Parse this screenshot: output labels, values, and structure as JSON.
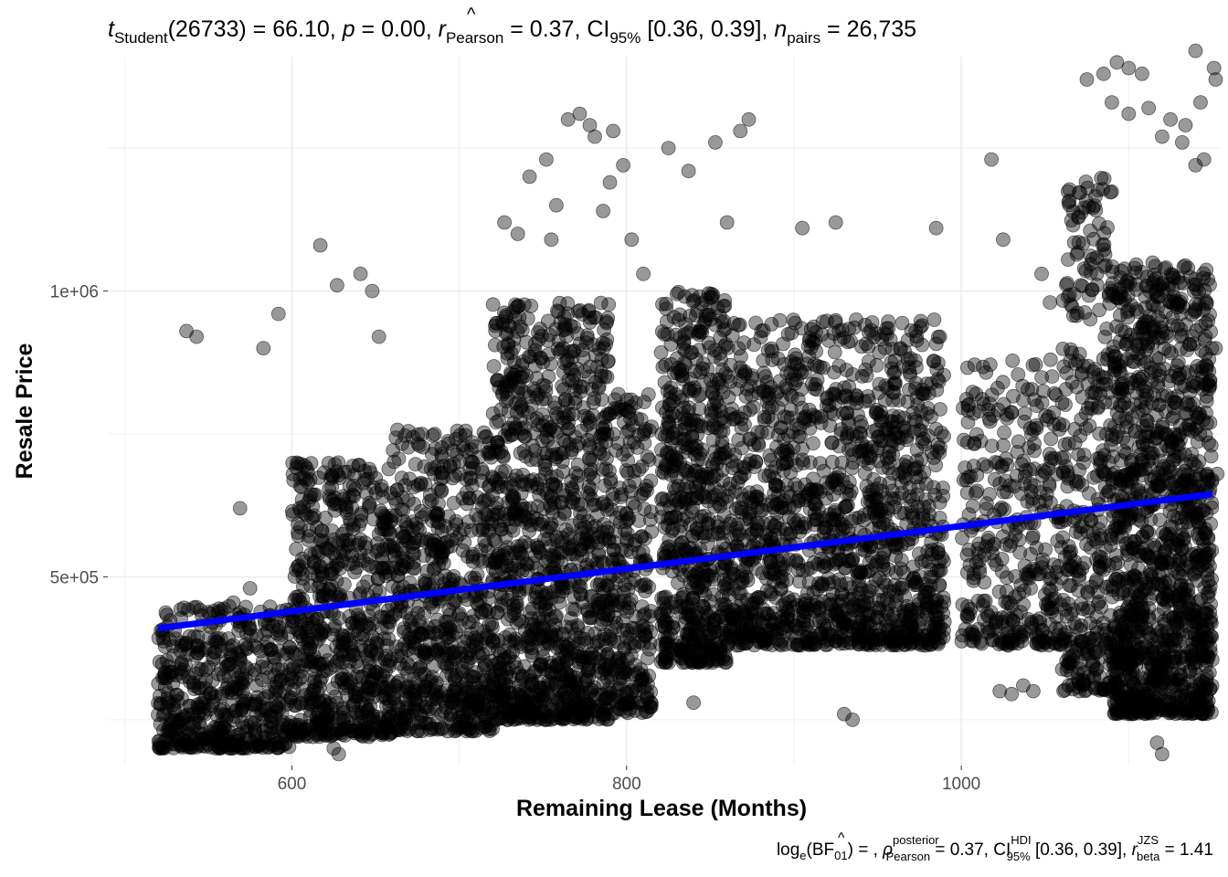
{
  "chart_data": {
    "type": "scatter",
    "title": "",
    "subtitle_stats": {
      "t_symbol": "t",
      "t_sub": "Student",
      "t_df": "(26733)",
      "t_value": " = 66.10, ",
      "p_symbol": "p",
      "p_value": " = 0.00, ",
      "r_symbol": "r",
      "r_hat": "^",
      "r_sub": "Pearson",
      "r_value": " = 0.37, CI",
      "ci_sub": "95%",
      "ci_value": " [0.36, 0.39], ",
      "n_symbol": "n",
      "n_sub": "pairs",
      "n_value": " = 26,735"
    },
    "caption_stats": {
      "log_prefix": "log",
      "log_sub": "e",
      "bf_open": "(BF",
      "bf_sub": "01",
      "bf_close": ") = , ",
      "rho_symbol": "ρ",
      "rho_hat": "^",
      "rho_sup": "posterior",
      "rho_sub": "Pearson",
      "rho_value": " = 0.37, CI",
      "hdi_sup": "HDI",
      "hdi_sub": "95%",
      "hdi_value": " [0.36, 0.39], ",
      "r_symbol": "r",
      "r_sup": "JZS",
      "r_sub": "beta",
      "r_value": " = 1.41"
    },
    "xlabel": "Remaining Lease (Months)",
    "ylabel": "Resale Price",
    "xlim": [
      490,
      1155
    ],
    "ylim": [
      170000,
      1410000
    ],
    "x_ticks": [
      600,
      800,
      1000
    ],
    "x_tick_labels": [
      "600",
      "800",
      "1000"
    ],
    "y_ticks": [
      500000,
      1000000
    ],
    "y_tick_labels": [
      "5e+05",
      "1e+06"
    ],
    "grid": true,
    "point_color": "#000000",
    "point_opacity": 0.4,
    "regression_line": {
      "color": "#0000ff",
      "x": [
        520,
        1150
      ],
      "y": [
        410000,
        645000
      ]
    },
    "clusters": [
      {
        "x": [
          520,
          600
        ],
        "y_range": [
          200000,
          450000
        ],
        "count": 520
      },
      {
        "x": [
          600,
          660
        ],
        "y_range": [
          220000,
          700000
        ],
        "count": 650
      },
      {
        "x": [
          660,
          720
        ],
        "y_range": [
          230000,
          760000
        ],
        "count": 650
      },
      {
        "x": [
          720,
          790
        ],
        "y_range": [
          250000,
          980000
        ],
        "count": 1100
      },
      {
        "x": [
          790,
          815
        ],
        "y_range": [
          260000,
          820000
        ],
        "count": 260
      },
      {
        "x": [
          820,
          860
        ],
        "y_range": [
          350000,
          1000000
        ],
        "count": 600
      },
      {
        "x": [
          860,
          990
        ],
        "y_range": [
          380000,
          950000
        ],
        "count": 1400
      },
      {
        "x": [
          1000,
          1060
        ],
        "y_range": [
          380000,
          880000
        ],
        "count": 360
      },
      {
        "x": [
          1060,
          1090
        ],
        "y_range": [
          300000,
          1200000
        ],
        "count": 360
      },
      {
        "x": [
          1090,
          1150
        ],
        "y_range": [
          260000,
          1050000
        ],
        "count": 1300
      }
    ],
    "outliers": [
      [
        537,
        930000
      ],
      [
        543,
        920000
      ],
      [
        569,
        620000
      ],
      [
        575,
        480000
      ],
      [
        583,
        900000
      ],
      [
        592,
        960000
      ],
      [
        617,
        1080000
      ],
      [
        627,
        1010000
      ],
      [
        641,
        1030000
      ],
      [
        652,
        920000
      ],
      [
        648,
        1000000
      ],
      [
        565,
        455000
      ],
      [
        727,
        1120000
      ],
      [
        735,
        1100000
      ],
      [
        755,
        1090000
      ],
      [
        772,
        1310000
      ],
      [
        778,
        1290000
      ],
      [
        781,
        1270000
      ],
      [
        765,
        1300000
      ],
      [
        792,
        1280000
      ],
      [
        798,
        1220000
      ],
      [
        790,
        1190000
      ],
      [
        786,
        1140000
      ],
      [
        742,
        1200000
      ],
      [
        752,
        1230000
      ],
      [
        758,
        1150000
      ],
      [
        803,
        1090000
      ],
      [
        810,
        1030000
      ],
      [
        825,
        1250000
      ],
      [
        837,
        1210000
      ],
      [
        853,
        1260000
      ],
      [
        868,
        1280000
      ],
      [
        873,
        1300000
      ],
      [
        860,
        1120000
      ],
      [
        905,
        1110000
      ],
      [
        925,
        1120000
      ],
      [
        985,
        1110000
      ],
      [
        1025,
        1090000
      ],
      [
        1018,
        1230000
      ],
      [
        1048,
        1030000
      ],
      [
        1053,
        980000
      ],
      [
        1075,
        1370000
      ],
      [
        1085,
        1380000
      ],
      [
        1093,
        1400000
      ],
      [
        1100,
        1390000
      ],
      [
        1108,
        1380000
      ],
      [
        1090,
        1330000
      ],
      [
        1100,
        1310000
      ],
      [
        1112,
        1320000
      ],
      [
        1125,
        1300000
      ],
      [
        1134,
        1290000
      ],
      [
        1140,
        1220000
      ],
      [
        1143,
        1330000
      ],
      [
        1151,
        1390000
      ],
      [
        1152,
        1370000
      ],
      [
        1140,
        1420000
      ],
      [
        1120,
        1270000
      ],
      [
        1132,
        1260000
      ],
      [
        1145,
        1230000
      ],
      [
        1023,
        300000
      ],
      [
        1030,
        295000
      ],
      [
        1037,
        310000
      ],
      [
        1043,
        300000
      ],
      [
        1117,
        210000
      ],
      [
        1120,
        190000
      ],
      [
        930,
        260000
      ],
      [
        935,
        250000
      ],
      [
        708,
        270000
      ],
      [
        716,
        255000
      ],
      [
        840,
        280000
      ],
      [
        628,
        190000
      ],
      [
        625,
        200000
      ],
      [
        560,
        205000
      ],
      [
        573,
        215000
      ],
      [
        780,
        255000
      ],
      [
        801,
        340000
      ],
      [
        1148,
        860000
      ],
      [
        1152,
        900000
      ],
      [
        1153,
        680000
      ]
    ]
  }
}
